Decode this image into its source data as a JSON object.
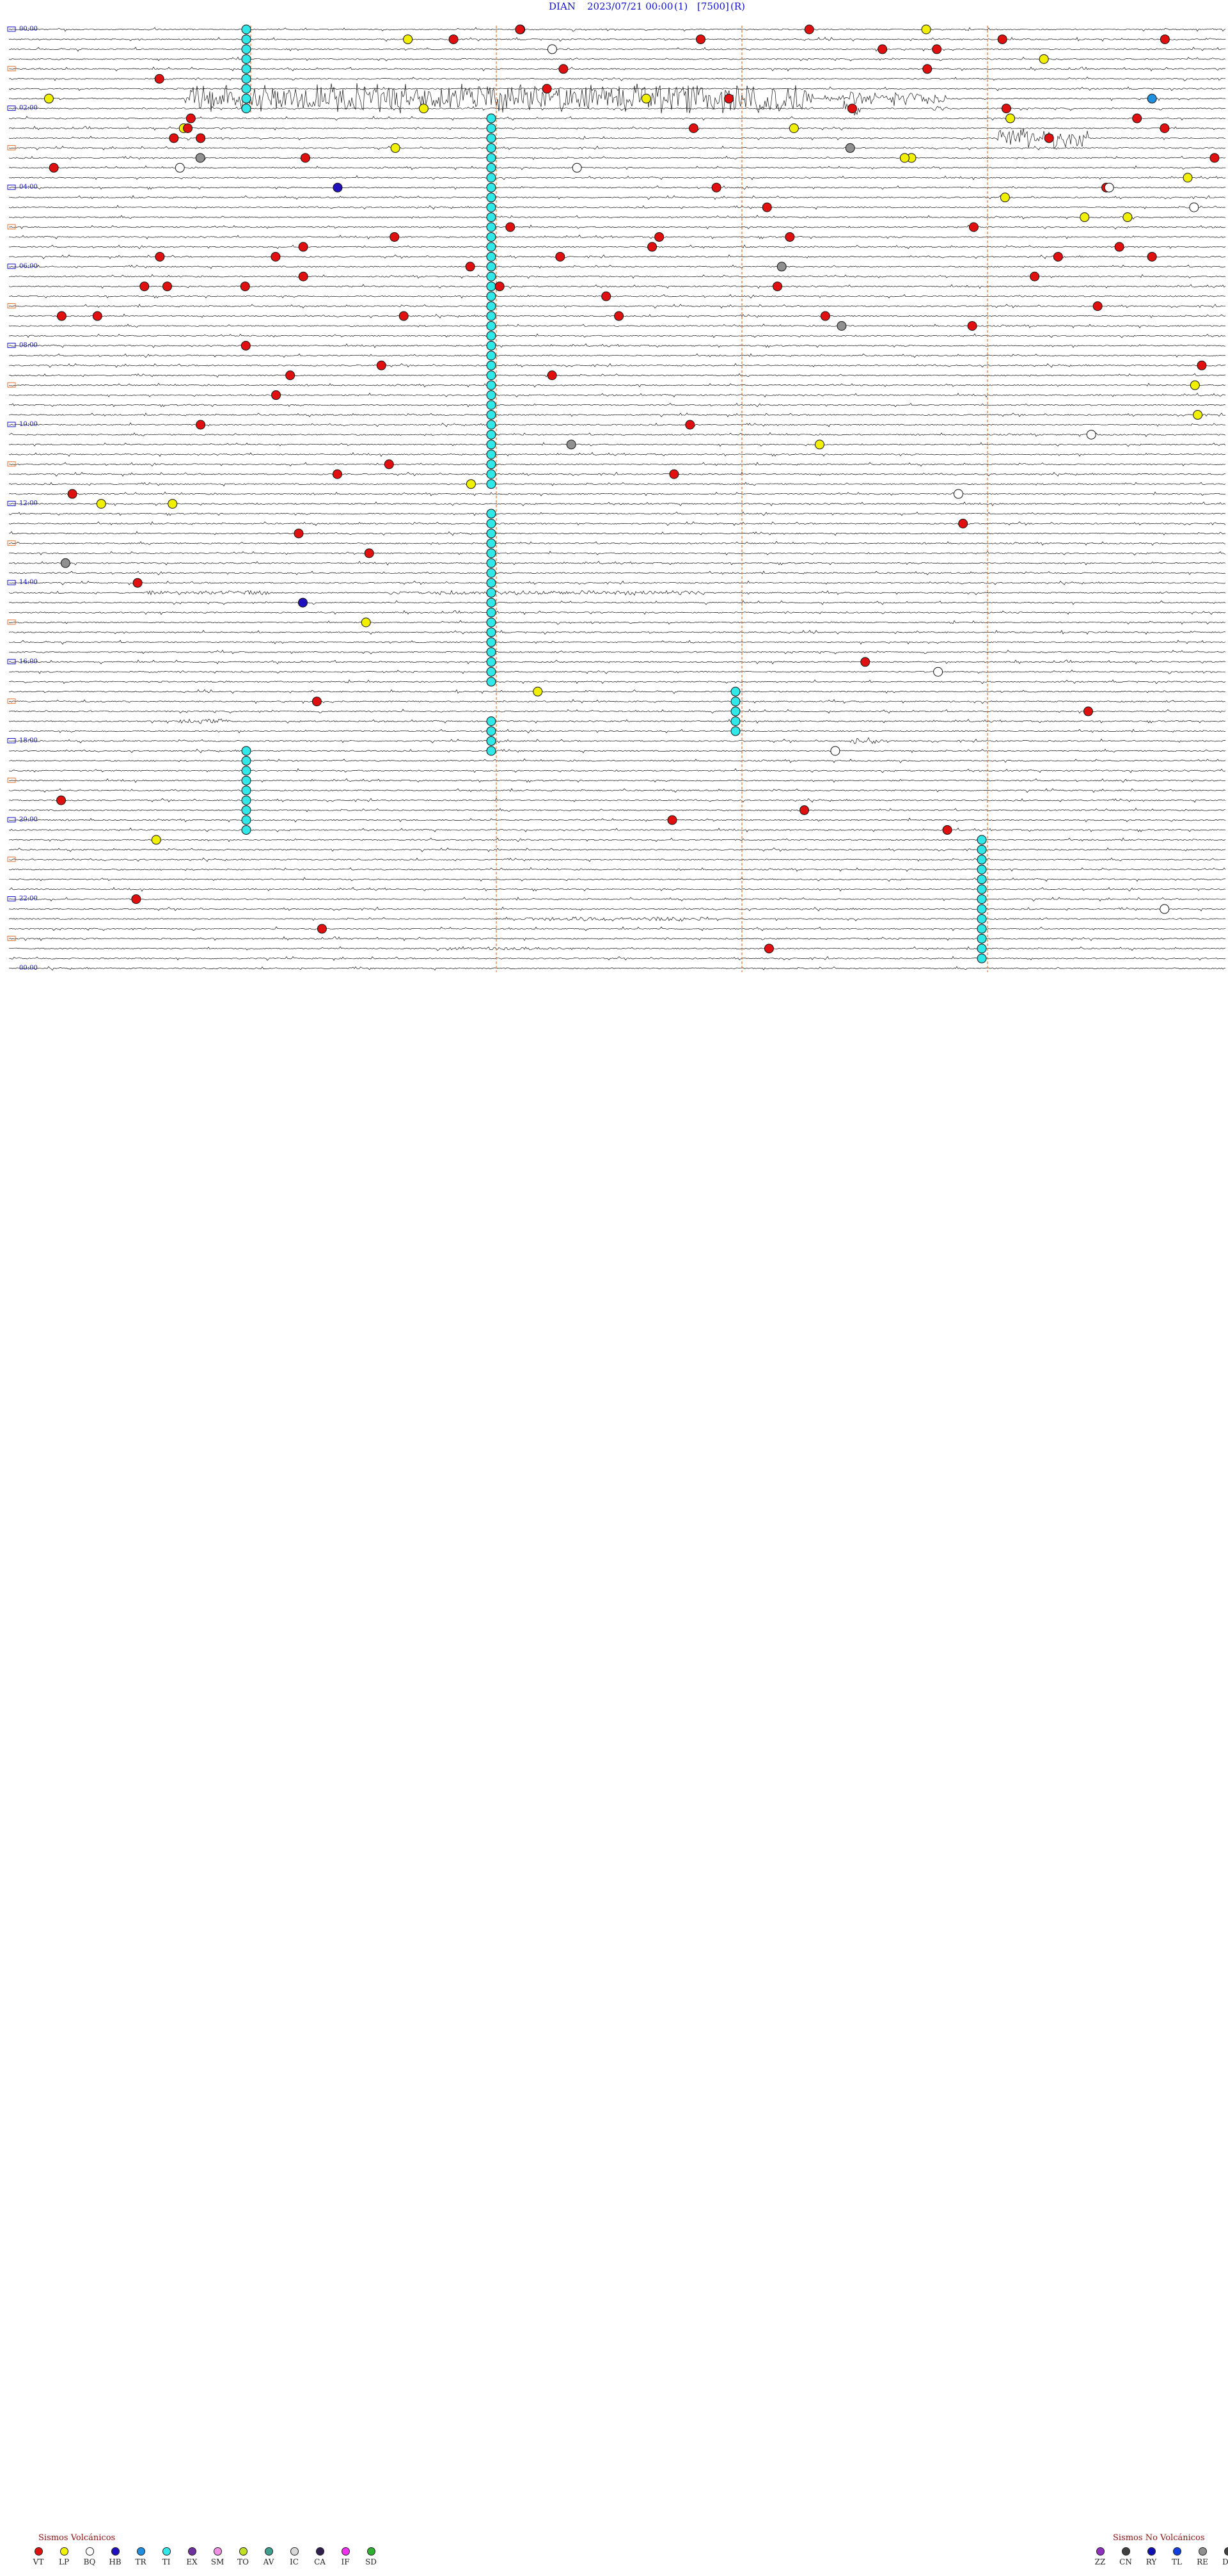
{
  "header": {
    "station": "DIAN",
    "datetime": "2023/07/21 00:00",
    "component": "(1)",
    "scale": "[7500]",
    "mode": "(R)"
  },
  "chart_data": {
    "type": "helicorder",
    "hour_labels": [
      "00:00",
      "02:00",
      "04:00",
      "06:00",
      "08:00",
      "10:00",
      "12:00",
      "14:00",
      "16:00",
      "18:00",
      "20:00",
      "22:00",
      "00:00"
    ],
    "colors": {
      "trace": "#111111",
      "marker_line": "#e07030",
      "header_text": "#1010c8",
      "VT": "#e01010",
      "LP": "#f0f000",
      "BQ": "#ffffff",
      "HB": "#2010c0",
      "TR": "#2090e0",
      "TI": "#30e8e8",
      "EX": "#7030a0",
      "SM": "#f090e0",
      "TO": "#c0e020",
      "AV": "#40a090",
      "IC": "#d8d8d8",
      "CA": "#302050",
      "IF": "#f030f0",
      "SD": "#30b030",
      "ZZ": "#9030c0",
      "CN": "#404040",
      "RY": "#1010b0",
      "TL": "#1040e0",
      "RE": "#909090",
      "DS": "#404040"
    }
  },
  "legend": {
    "volcanic_title": "Sismos Volcánicos",
    "volcanic": [
      "VT",
      "LP",
      "BQ",
      "HB",
      "TR",
      "TI",
      "EX",
      "SM",
      "TO",
      "AV",
      "IC",
      "CA",
      "IF",
      "SD"
    ],
    "nonvolcanic_title": "Sismos No Volcánicos",
    "nonvolcanic": [
      "ZZ",
      "CN",
      "RY",
      "TL",
      "RE",
      "DS"
    ]
  }
}
